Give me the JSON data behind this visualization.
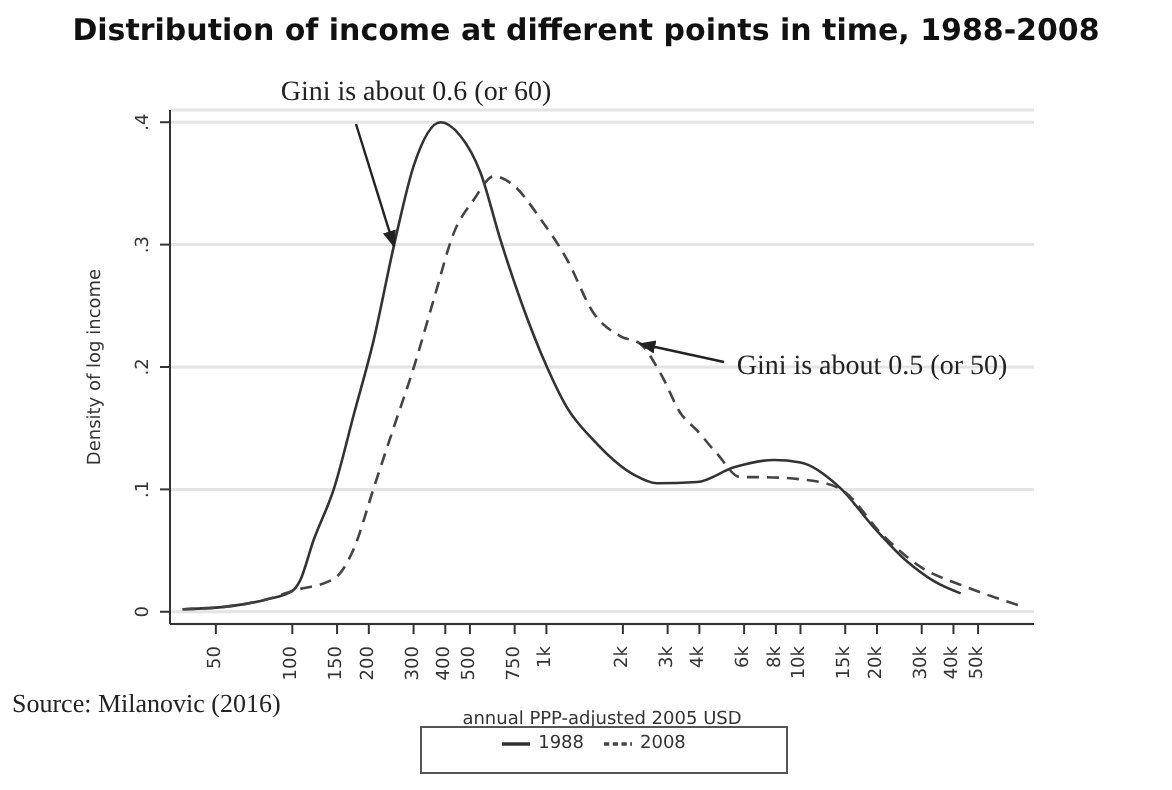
{
  "chart_data": {
    "type": "line",
    "title": "Distribution of income at different points in time, 1988-2008",
    "xlabel": "annual PPP-adjusted 2005 USD",
    "ylabel": "Density of log income",
    "log": "x",
    "grid": "y",
    "legend": "bottom",
    "xlim": [
      33,
      83000
    ],
    "ylim": [
      -0.01,
      0.41
    ],
    "xticks": [
      50,
      100,
      150,
      200,
      300,
      400,
      500,
      750,
      {
        "value": 1000,
        "label": "1k"
      },
      {
        "value": 2000,
        "label": "2k"
      },
      {
        "value": 3000,
        "label": "3k"
      },
      {
        "value": 4000,
        "label": "4k"
      },
      {
        "value": 6000,
        "label": "6k"
      },
      {
        "value": 8000,
        "label": "8k"
      },
      {
        "value": 10000,
        "label": "10k"
      },
      {
        "value": 15000,
        "label": "15k"
      },
      {
        "value": 20000,
        "label": "20k"
      },
      {
        "value": 30000,
        "label": "30k"
      },
      {
        "value": 40000,
        "label": "40k"
      },
      {
        "value": 50000,
        "label": "50k"
      }
    ],
    "yticks": [
      0,
      {
        "value": 0.1,
        "label": ".1"
      },
      {
        "value": 0.2,
        "label": ".2"
      },
      {
        "value": 0.3,
        "label": ".3"
      },
      {
        "value": 0.4,
        "label": ".4"
      }
    ],
    "series": [
      {
        "name": "1988",
        "color": "#333333",
        "line_style": "solid",
        "x": [
          37,
          59,
          79,
          100,
          107,
          121,
          146,
          175,
          209,
          251,
          301,
          383,
          458,
          550,
          659,
          790,
          1005,
          1204,
          1535,
          2206,
          2723,
          3920,
          5470,
          7850,
          10000,
          14360,
          19430,
          26300,
          33500,
          42700
        ],
        "values": [
          0.002,
          0.005,
          0.01,
          0.017,
          0.025,
          0.058,
          0.101,
          0.162,
          0.222,
          0.299,
          0.365,
          0.4,
          0.389,
          0.359,
          0.304,
          0.255,
          0.2,
          0.167,
          0.14,
          0.112,
          0.105,
          0.106,
          0.118,
          0.124,
          0.122,
          0.101,
          0.069,
          0.041,
          0.025,
          0.015
        ]
      },
      {
        "name": "2008",
        "color": "#444444",
        "line_style": "dashed",
        "x": [
          37,
          59,
          79,
          100,
          146,
          175,
          209,
          251,
          301,
          360,
          433,
          519,
          622,
          746,
          948,
          1204,
          1535,
          1960,
          2340,
          2810,
          3380,
          3920,
          4700,
          5800,
          7000,
          11170,
          14700,
          21000,
          30000,
          42700,
          73000
        ],
        "values": [
          0.002,
          0.005,
          0.01,
          0.017,
          0.027,
          0.052,
          0.101,
          0.151,
          0.2,
          0.255,
          0.31,
          0.337,
          0.356,
          0.348,
          0.321,
          0.288,
          0.244,
          0.225,
          0.219,
          0.195,
          0.162,
          0.148,
          0.129,
          0.11,
          0.11,
          0.107,
          0.099,
          0.063,
          0.036,
          0.022,
          0.005
        ]
      }
    ],
    "annotations": [
      {
        "text": "Gini is about 0.6 (or 60)",
        "x": 251,
        "y": 0.299
      },
      {
        "text": "Gini is about 0.5 (or 50)",
        "x": 2340,
        "y": 0.219
      },
      "Source: Milanovic (2016)"
    ]
  }
}
